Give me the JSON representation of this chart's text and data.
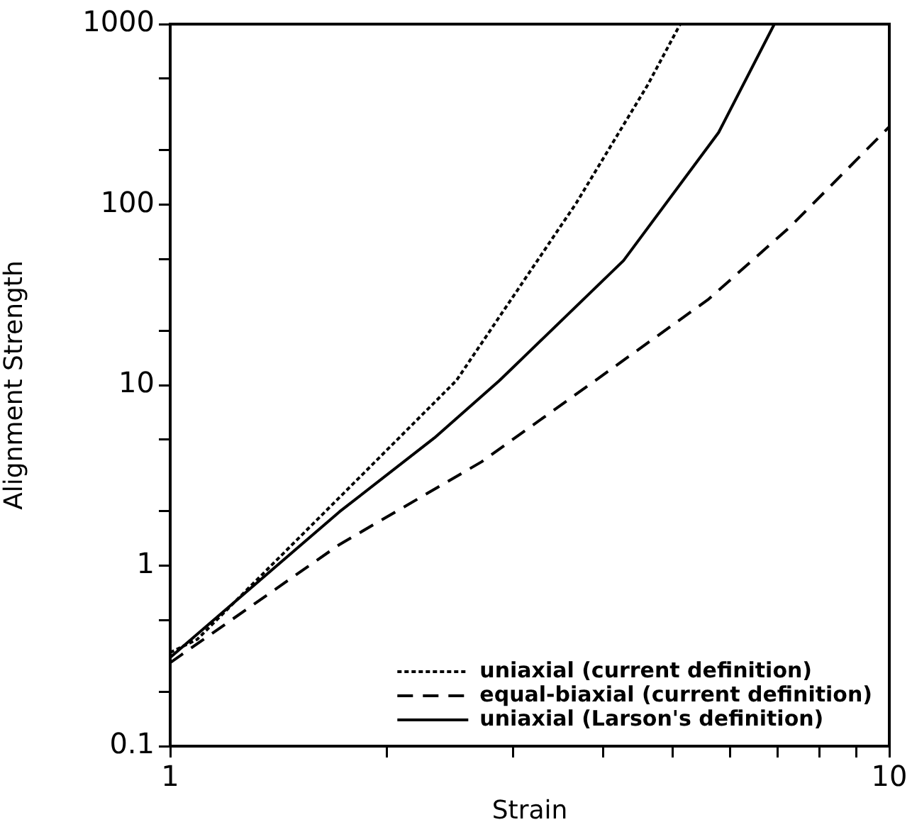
{
  "chart_data": {
    "type": "line",
    "xlabel": "Strain",
    "ylabel": "Alignment Strength",
    "log": "xy",
    "xlim": [
      1,
      10
    ],
    "ylim": [
      0.1,
      1000
    ],
    "xticks": [
      1,
      {
        "value": 2,
        "label": null
      },
      {
        "value": 3,
        "label": null
      },
      {
        "value": 4,
        "label": null
      },
      {
        "value": 5,
        "label": null
      },
      {
        "value": 6,
        "label": null
      },
      {
        "value": 7,
        "label": null
      },
      {
        "value": 8,
        "label": null
      },
      {
        "value": 9,
        "label": null
      },
      10
    ],
    "yticks": [
      0.1,
      {
        "value": 0.2,
        "label": null
      },
      {
        "value": 0.5,
        "label": null
      },
      1,
      {
        "value": 2,
        "label": null
      },
      {
        "value": 5,
        "label": null
      },
      10,
      {
        "value": 20,
        "label": null
      },
      {
        "value": 50,
        "label": null
      },
      100,
      {
        "value": 200,
        "label": null
      },
      {
        "value": 500,
        "label": null
      },
      1000
    ],
    "grid": false,
    "legend": "bottom right",
    "marker": "none",
    "series": [
      {
        "name": "uniaxial (current definition)",
        "color": "#000000",
        "line_style": "dotted",
        "x": [
          1,
          1.09,
          1.72,
          2.5,
          3.67,
          4.61,
          5.12
        ],
        "values": [
          0.33,
          0.39,
          2.39,
          10.6,
          102,
          458,
          1000
        ]
      },
      {
        "name": "equal-biaxial (current definition)",
        "color": "#000000",
        "line_style": "dashed",
        "x": [
          1,
          1.72,
          2.71,
          3.9,
          5.61,
          7.27,
          10
        ],
        "values": [
          0.29,
          1.31,
          3.76,
          10.6,
          30,
          75,
          270
        ]
      },
      {
        "name": "uniaxial (Larson's definition)",
        "color": "#000000",
        "line_style": "solid",
        "x": [
          1,
          1.72,
          2.33,
          2.87,
          4.27,
          5.79,
          6.92
        ],
        "values": [
          0.31,
          1.99,
          5.1,
          10.6,
          49,
          251,
          1000
        ]
      }
    ]
  }
}
